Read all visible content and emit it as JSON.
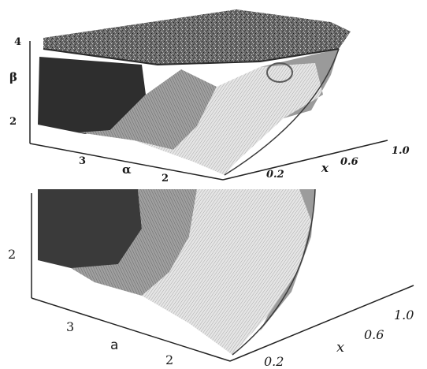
{
  "chart_data": [
    {
      "type": "surface3d",
      "panel": "top",
      "title": "",
      "axes": {
        "z": {
          "label": "β",
          "ticks": [
            "4",
            "2"
          ]
        },
        "alpha": {
          "label": "α",
          "ticks": [
            "3",
            "2"
          ]
        },
        "x": {
          "label": "x",
          "ticks": [
            "0.2",
            "0.6",
            "1.0"
          ]
        }
      },
      "colors": {
        "dark": "#2e2e2e",
        "mid": "#8a8a8a",
        "light": "#d4d4d4",
        "top": "#5a5a5a"
      }
    },
    {
      "type": "surface3d",
      "panel": "bottom",
      "title": "",
      "axes": {
        "z": {
          "label": "",
          "ticks": [
            "2"
          ]
        },
        "alpha": {
          "label": "a",
          "ticks": [
            "3",
            "2"
          ]
        },
        "x": {
          "label": "x",
          "ticks": [
            "0.2",
            "0.6",
            "1.0"
          ]
        }
      },
      "colors": {
        "dark": "#3a3a3a",
        "mid": "#8f8f8f",
        "light": "#dcdcdc"
      }
    }
  ]
}
